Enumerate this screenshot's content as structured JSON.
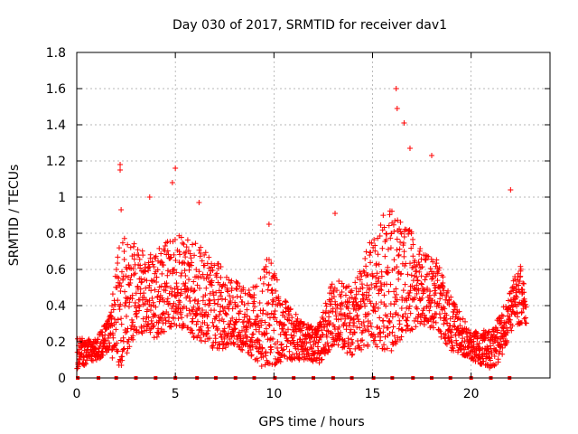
{
  "chart_data": {
    "type": "scatter",
    "title": "Day 030 of 2017, SRMTID for receiver dav1",
    "xlabel": "GPS time / hours",
    "ylabel": "SRMTID / TECUs",
    "xlim": [
      0,
      24
    ],
    "ylim": [
      0,
      1.8
    ],
    "xticks": [
      0,
      5,
      10,
      15,
      20
    ],
    "xtick_labels": [
      "0",
      "5",
      "10",
      "15",
      "20"
    ],
    "yticks": [
      0,
      0.2,
      0.4,
      0.6,
      0.8,
      1.0,
      1.2,
      1.4,
      1.6,
      1.8
    ],
    "ytick_labels": [
      "0",
      "0.2",
      "0.4",
      "0.6",
      "0.8",
      "1",
      "1.2",
      "1.4",
      "1.6",
      "1.8"
    ],
    "grid": true,
    "marker": "plus",
    "color": "#ff0000",
    "zero_markers": {
      "marker": "square",
      "y": 0,
      "x": [
        0.05,
        1.1,
        2.0,
        3.0,
        4.0,
        5.0,
        6.1,
        7.05,
        8.05,
        9.0,
        10.05,
        11.0,
        12.0,
        13.0,
        13.95,
        15.05,
        16.0,
        17.05,
        18.0,
        18.95,
        20.0,
        21.0,
        21.95
      ]
    },
    "notable_points": [
      {
        "x": 2.2,
        "y": 1.18
      },
      {
        "x": 2.2,
        "y": 1.15
      },
      {
        "x": 2.25,
        "y": 0.93
      },
      {
        "x": 3.7,
        "y": 1.0
      },
      {
        "x": 4.85,
        "y": 1.08
      },
      {
        "x": 5.0,
        "y": 1.16
      },
      {
        "x": 6.2,
        "y": 0.97
      },
      {
        "x": 9.75,
        "y": 0.85
      },
      {
        "x": 13.1,
        "y": 0.91
      },
      {
        "x": 16.2,
        "y": 1.6
      },
      {
        "x": 16.25,
        "y": 1.49
      },
      {
        "x": 16.6,
        "y": 1.41
      },
      {
        "x": 16.9,
        "y": 1.27
      },
      {
        "x": 18.0,
        "y": 1.23
      },
      {
        "x": 22.0,
        "y": 1.04
      }
    ],
    "envelope": {
      "description": "typical range of the dense cloud of SRMTID points by GPS hour",
      "hour": [
        0,
        1,
        1.7,
        2.2,
        3,
        4,
        5,
        6,
        7,
        8,
        9,
        9.7,
        10.5,
        11.5,
        12.3,
        13,
        14,
        15,
        15.5,
        16,
        16.8,
        17.5,
        18.3,
        19,
        20,
        21,
        21.5,
        22,
        22.5,
        22.8
      ],
      "low": [
        0.05,
        0.1,
        0.12,
        0.05,
        0.25,
        0.22,
        0.28,
        0.22,
        0.15,
        0.18,
        0.1,
        0.03,
        0.1,
        0.1,
        0.08,
        0.18,
        0.12,
        0.18,
        0.08,
        0.15,
        0.25,
        0.3,
        0.25,
        0.15,
        0.1,
        0.05,
        0.1,
        0.25,
        0.3,
        0.3
      ],
      "high": [
        0.22,
        0.22,
        0.35,
        0.78,
        0.75,
        0.7,
        0.8,
        0.75,
        0.65,
        0.55,
        0.5,
        0.68,
        0.45,
        0.3,
        0.3,
        0.55,
        0.5,
        0.8,
        0.9,
        0.95,
        0.85,
        0.7,
        0.65,
        0.45,
        0.25,
        0.28,
        0.35,
        0.5,
        0.65,
        0.45
      ]
    }
  }
}
